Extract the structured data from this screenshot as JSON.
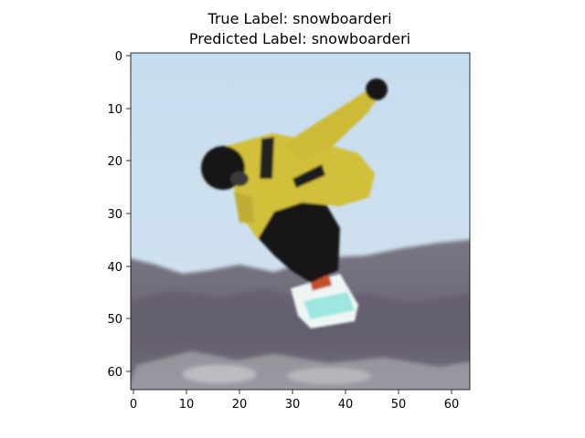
{
  "title": {
    "true_label": "True Label: snowboarderi",
    "predicted_label": "Predicted Label: snowboarderi"
  },
  "axes": {
    "x_ticks": [
      "0",
      "10",
      "20",
      "30",
      "40",
      "50",
      "60"
    ],
    "y_ticks": [
      "0",
      "10",
      "20",
      "30",
      "40",
      "50",
      "60"
    ],
    "xlim": [
      -0.5,
      63.5
    ],
    "ylim": [
      63.5,
      -0.5
    ],
    "image_size": [
      64,
      64
    ]
  },
  "image": {
    "subject": "snowboarder in yellow jacket mid-air",
    "colors": {
      "sky": "#c8dff0",
      "jacket": "#d4c23a",
      "pants": "#1a1a1a",
      "mountains": "#6e6a78",
      "snow": "#c8c8cc",
      "board": "#9ee6e0"
    }
  }
}
